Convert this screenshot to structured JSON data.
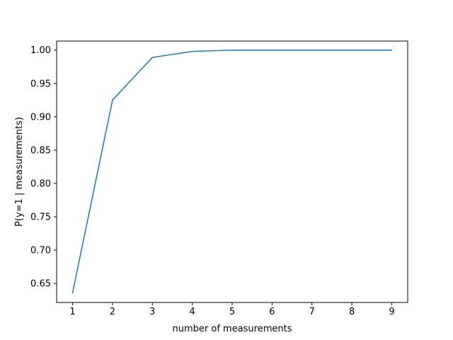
{
  "chart_data": {
    "type": "line",
    "title": "",
    "xlabel": "number of measurements",
    "ylabel": "P(y=1 | measurements)",
    "xlim": [
      0.6,
      9.4
    ],
    "ylim": [
      0.6215,
      1.0135
    ],
    "xticks": [
      1,
      2,
      3,
      4,
      5,
      6,
      7,
      8,
      9
    ],
    "yticks": [
      0.65,
      0.7,
      0.75,
      0.8,
      0.85,
      0.9,
      0.95,
      1.0
    ],
    "ytick_labels": [
      "0.65",
      "0.70",
      "0.75",
      "0.80",
      "0.85",
      "0.90",
      "0.95",
      "1.00"
    ],
    "grid": false,
    "legend": "none",
    "series": [
      {
        "color": "#1f77b4",
        "x": [
          1,
          2,
          3,
          4,
          5,
          6,
          7,
          8,
          9
        ],
        "y": [
          0.636,
          0.925,
          0.989,
          0.998,
          1.0,
          1.0,
          1.0,
          1.0,
          1.0
        ]
      }
    ]
  }
}
